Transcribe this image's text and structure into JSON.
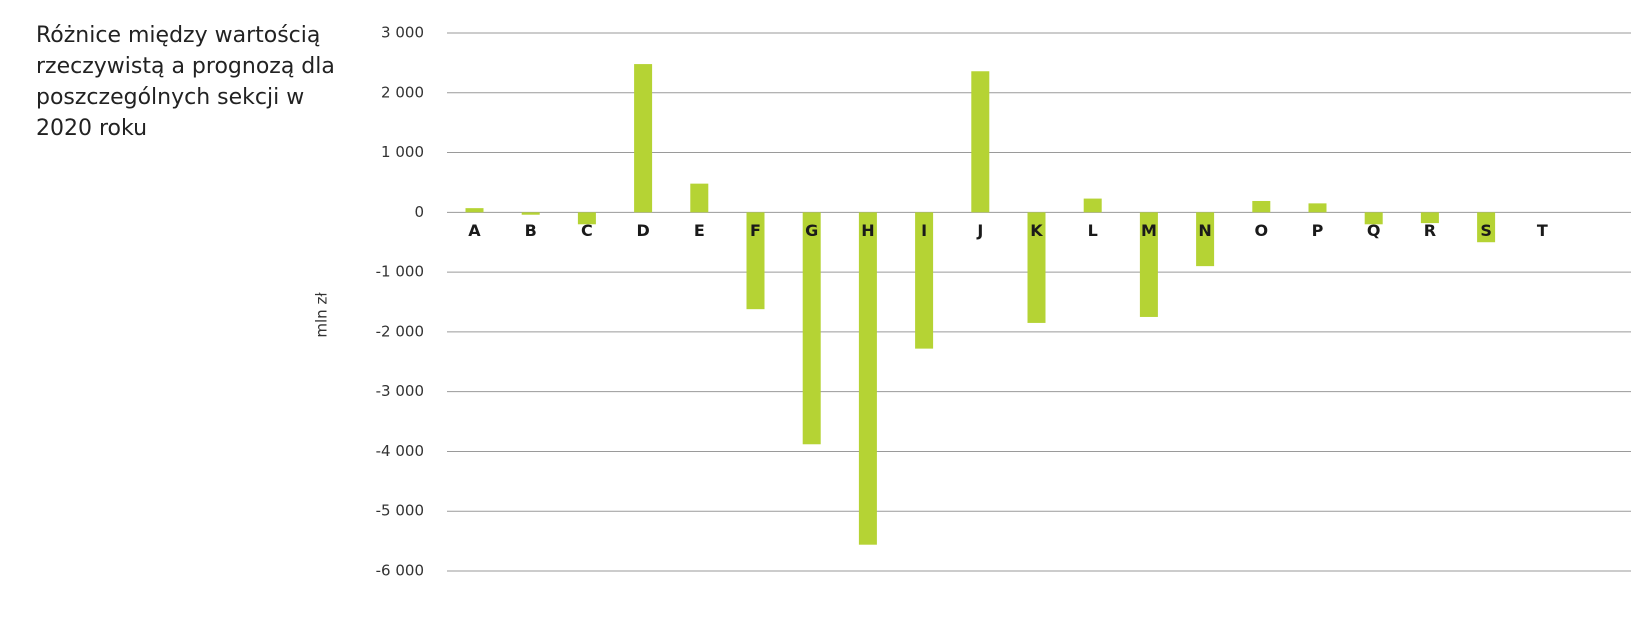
{
  "chart_data": {
    "type": "bar",
    "title": "Różnice między wartością rzeczywistą a prognozą dla poszczególnych sekcji w 2020 roku",
    "ylabel": "mln zł",
    "xlabel": "",
    "ylim": [
      -6000,
      3000
    ],
    "yticks": [
      3000,
      2000,
      1000,
      0,
      -1000,
      -2000,
      -3000,
      -4000,
      -5000,
      -6000
    ],
    "ytick_labels": [
      "3 000",
      "2 000",
      "1 000",
      "0",
      "-1 000",
      "-2 000",
      "-3 000",
      "-4 000",
      "-5 000",
      "-6 000"
    ],
    "grid": true,
    "legend": "none",
    "color": "#b5d334",
    "categories": [
      "A",
      "B",
      "C",
      "D",
      "E",
      "F",
      "G",
      "H",
      "I",
      "J",
      "K",
      "L",
      "M",
      "N",
      "O",
      "P",
      "Q",
      "R",
      "S",
      "T"
    ],
    "values": [
      70,
      -40,
      -200,
      2480,
      480,
      -1620,
      -3880,
      -5560,
      -2280,
      2360,
      -1850,
      230,
      -1750,
      -900,
      190,
      150,
      -200,
      -180,
      -500,
      0
    ]
  }
}
